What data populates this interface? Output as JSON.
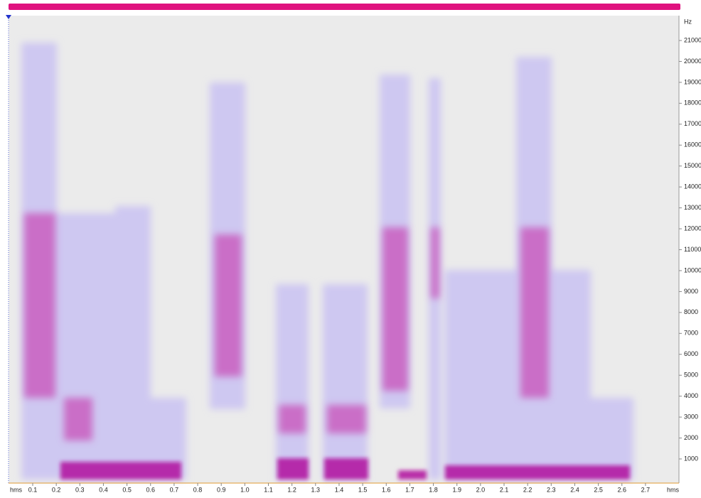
{
  "top_bar": {
    "color": "#e0127f"
  },
  "y_axis": {
    "unit": "Hz",
    "ticks": [
      "1000",
      "2000",
      "3000",
      "4000",
      "5000",
      "6000",
      "7000",
      "8000",
      "9000",
      "10000",
      "11000",
      "12000",
      "13000",
      "14000",
      "15000",
      "16000",
      "17000",
      "18000",
      "19000",
      "20000",
      "21000"
    ]
  },
  "x_axis": {
    "start_label": "hms",
    "end_label": "hms",
    "ticks": [
      "0.1",
      "0.2",
      "0.3",
      "0.4",
      "0.5",
      "0.6",
      "0.7",
      "0.8",
      "0.9",
      "1.0",
      "1.1",
      "1.2",
      "1.3",
      "1.4",
      "1.5",
      "1.6",
      "1.7",
      "1.8",
      "1.9",
      "2.0",
      "2.1",
      "2.2",
      "2.3",
      "2.4",
      "2.5",
      "2.6",
      "2.7"
    ]
  }
}
